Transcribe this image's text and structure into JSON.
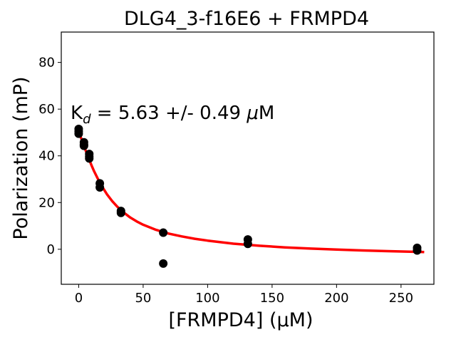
{
  "chart_data": {
    "type": "scatter",
    "title": "DLG4_3-f16E6 + FRMPD4",
    "xlabel": "[FRMPD4] (μM)",
    "ylabel": "Polarization (mP)",
    "xlim": [
      -13.5,
      275.5
    ],
    "ylim": [
      -15,
      93
    ],
    "xticks": [
      0,
      50,
      100,
      150,
      200,
      250
    ],
    "yticks": [
      0,
      20,
      40,
      60,
      80
    ],
    "xtick_labels": [
      "0",
      "50",
      "100",
      "150",
      "200",
      "250"
    ],
    "ytick_labels": [
      "0",
      "20",
      "40",
      "60",
      "80"
    ],
    "grid": false,
    "annotation": {
      "parts": [
        "K",
        "d",
        " = 5.63 +/- 0.49 ",
        "μ",
        "M"
      ]
    },
    "series": [
      {
        "role": "points",
        "color": "#000000",
        "x": [
          0,
          0,
          0,
          4.1,
          4.1,
          4.1,
          8.2,
          8.2,
          8.2,
          16.4,
          16.4,
          32.8,
          32.8,
          65.6,
          65.6,
          131.2,
          131.2,
          262.5,
          262.5
        ],
        "y": [
          51.5,
          50.5,
          49.5,
          45.8,
          44.8,
          44.3,
          40.8,
          39.7,
          38.9,
          28.2,
          26.5,
          16.4,
          15.6,
          7.1,
          -6.1,
          4.2,
          2.3,
          0.6,
          -0.5
        ]
      },
      {
        "role": "fit",
        "color": "#ff0000",
        "x": [
          0,
          2,
          4,
          6,
          8,
          10,
          12,
          15,
          18,
          22,
          26,
          30,
          35,
          40,
          45,
          50,
          60,
          70,
          80,
          90,
          100,
          120,
          140,
          160,
          180,
          200,
          220,
          240,
          268
        ],
        "y": [
          50.3,
          47.4,
          44.4,
          41.4,
          38.6,
          35.9,
          33.4,
          30.0,
          27.0,
          23.5,
          20.6,
          18.2,
          15.7,
          13.6,
          11.9,
          10.5,
          8.3,
          6.7,
          5.5,
          4.5,
          3.7,
          2.4,
          1.5,
          0.8,
          0.3,
          -0.1,
          -0.5,
          -0.8,
          -1.2
        ]
      }
    ]
  }
}
